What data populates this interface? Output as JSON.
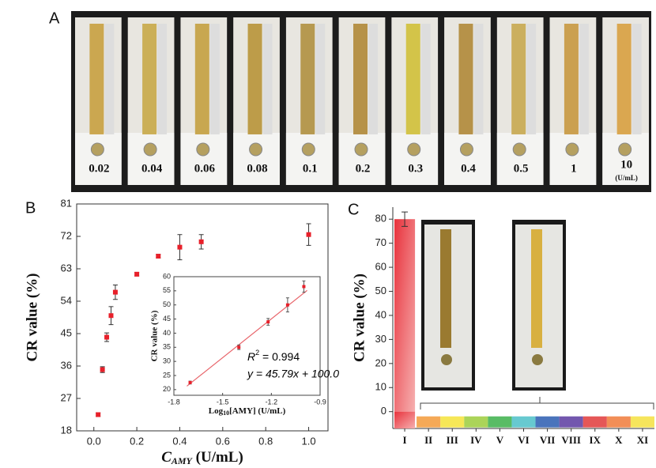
{
  "panel_a": {
    "label": "A",
    "tubes": [
      "0.02",
      "0.04",
      "0.06",
      "0.08",
      "0.1",
      "0.2",
      "0.3",
      "0.4",
      "0.5",
      "1",
      "10"
    ],
    "unit": "(U/mL)"
  },
  "chart_data": [
    {
      "type": "scatter",
      "panel_label": "B",
      "ylabel": "CR value (%)",
      "xlabel_main": "C",
      "xlabel_sub": "AMY",
      "xlabel_unit": " (U/mL)",
      "x": [
        0.02,
        0.04,
        0.06,
        0.08,
        0.1,
        0.2,
        0.3,
        0.4,
        0.5,
        1
      ],
      "series": [
        {
          "color": "#e8202a",
          "values": [
            22.5,
            35,
            44,
            50,
            56.5,
            61.5,
            66.5,
            69,
            70.5,
            72.5
          ],
          "errors": [
            0.5,
            0.8,
            1.2,
            2.5,
            2,
            0.5,
            0.5,
            3.5,
            2,
            3
          ]
        }
      ],
      "xlim": [
        -0.08,
        1.09
      ],
      "ylim": [
        18,
        81
      ],
      "xticks": [
        {
          "value": 0,
          "label": "0.0"
        },
        0.2,
        0.4,
        0.6,
        0.8,
        {
          "value": 1,
          "label": "1.0"
        }
      ],
      "yticks": [
        18,
        27,
        36,
        45,
        54,
        63,
        72,
        81
      ],
      "inset": {
        "type": "scatter",
        "ylabel": "CR value (%)",
        "xlabel_main": "Log",
        "xlabel_sub": "10",
        "xlabel_unit": "[AMY] (U/mL)",
        "x": [
          -1.7,
          -1.4,
          -1.22,
          -1.1,
          -1.0
        ],
        "values": [
          22.5,
          35,
          44,
          50,
          56.5
        ],
        "errors": [
          0.5,
          0.8,
          1.2,
          2.5,
          2
        ],
        "color": "#e8202a",
        "fit": {
          "x": [
            -1.72,
            -0.98
          ],
          "y": [
            21.24,
            55.13
          ],
          "color": "#e8646a"
        },
        "xlim": [
          -1.8,
          -0.9
        ],
        "ylim": [
          18,
          60
        ],
        "xticks": [
          -1.8,
          -1.5,
          -1.2,
          -0.9
        ],
        "yticks": [
          20,
          25,
          30,
          35,
          40,
          45,
          50,
          55,
          60
        ],
        "r2_main": "R",
        "r2_sup": "2",
        "r2_value": " = 0.994",
        "equation": "y = 45.79x + 100.0"
      }
    },
    {
      "type": "bar",
      "panel_label": "C",
      "ylabel": "CR value (%)",
      "categories": [
        "I",
        "II",
        "III",
        "IV",
        "V",
        "VI",
        "VII",
        "VIII",
        "IX",
        "X",
        "XI"
      ],
      "values": [
        80,
        0,
        0,
        0,
        0,
        0,
        0,
        0,
        0,
        0,
        0
      ],
      "errors": [
        3,
        null,
        null,
        null,
        null,
        null,
        null,
        null,
        null,
        null,
        null
      ],
      "colors": [
        "#e8323c",
        "#f39a3a",
        "#f5e33a",
        "#9ccc3c",
        "#3cb04a",
        "#4cc0c8",
        "#2a5cb0",
        "#5a3aa0",
        "#e03a3a",
        "#f07a3a",
        "#f5e040"
      ],
      "ylim": [
        -7,
        85
      ],
      "yticks": [
        0,
        10,
        20,
        30,
        40,
        50,
        60,
        70,
        80
      ]
    }
  ]
}
